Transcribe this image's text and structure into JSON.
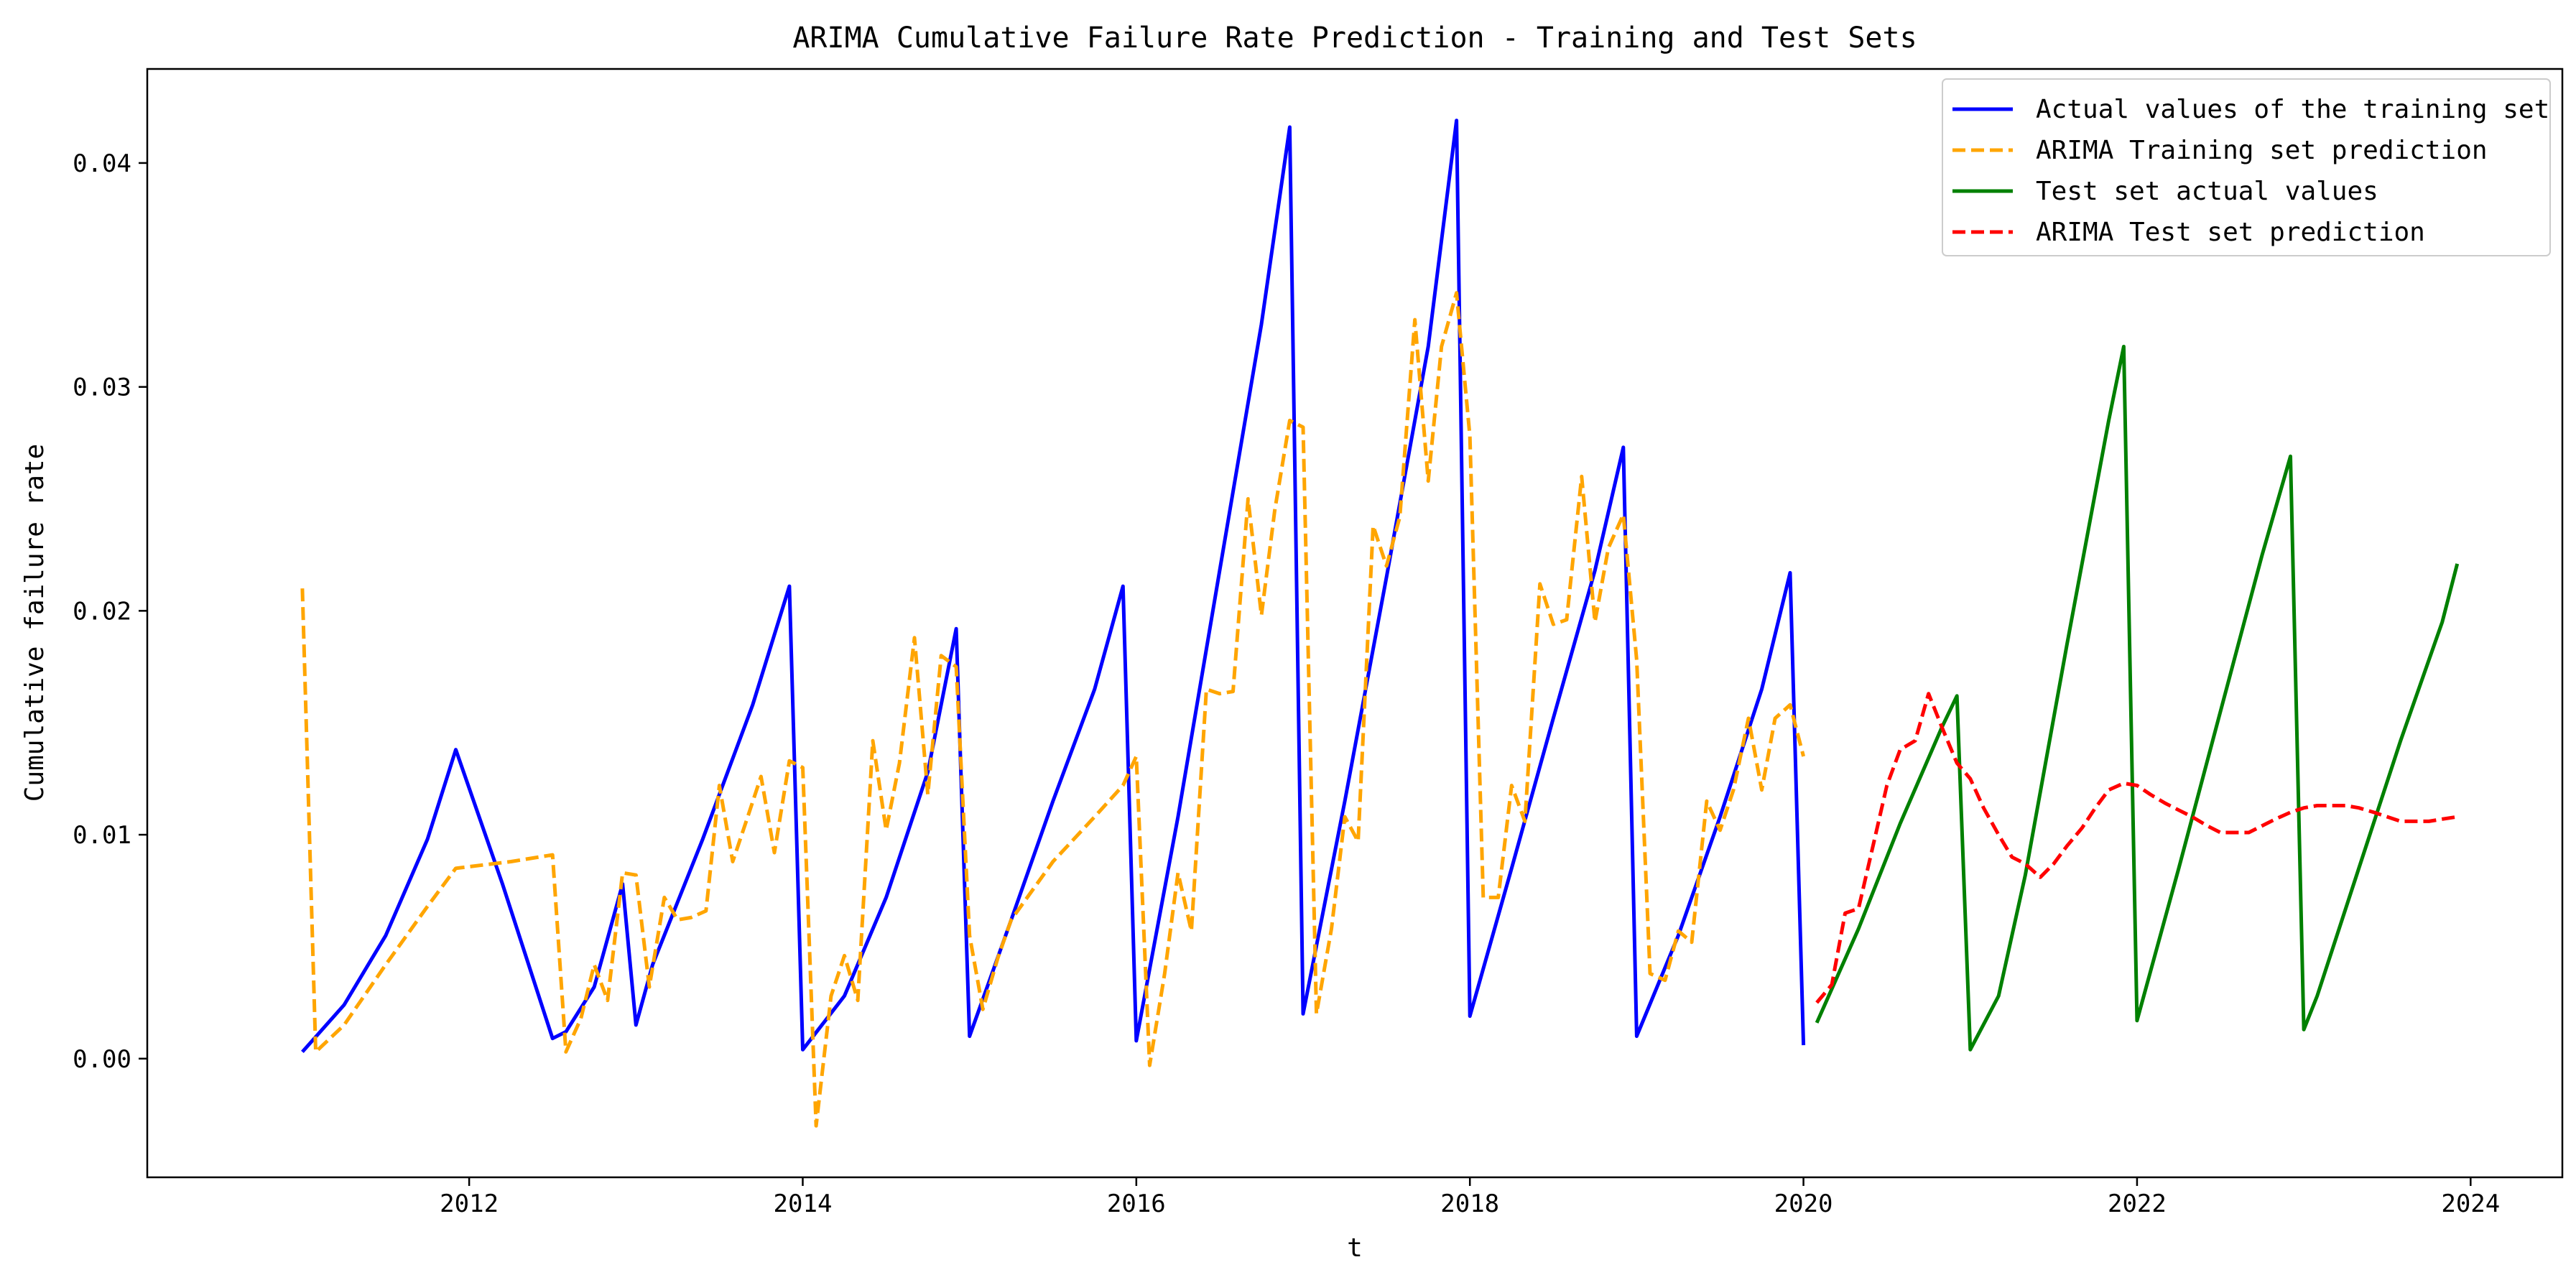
{
  "chart_data": {
    "type": "line",
    "title": "ARIMA Cumulative Failure Rate Prediction - Training and Test Sets",
    "xlabel": "t",
    "ylabel": "Cumulative failure rate",
    "xlim": [
      2010.07,
      2024.55
    ],
    "ylim": [
      -0.0053,
      0.0442
    ],
    "x_ticks": [
      2012,
      2014,
      2016,
      2018,
      2020,
      2022,
      2024
    ],
    "x_tick_labels": [
      "2012",
      "2014",
      "2016",
      "2018",
      "2020",
      "2022",
      "2024"
    ],
    "y_ticks": [
      0.0,
      0.01,
      0.02,
      0.03,
      0.04
    ],
    "y_tick_labels": [
      "0.00",
      "0.01",
      "0.02",
      "0.03",
      "0.04"
    ],
    "grid": false,
    "legend_position": "top-right",
    "series": [
      {
        "name": "Actual values of the training set",
        "color": "#0000ff",
        "dash": "solid",
        "x": [
          2011.0,
          2011.25,
          2011.5,
          2011.75,
          2011.92,
          2012.2,
          2012.5,
          2012.58,
          2012.75,
          2012.92,
          2013.0,
          2013.1,
          2013.4,
          2013.7,
          2013.92,
          2014.0,
          2014.25,
          2014.5,
          2014.75,
          2014.92,
          2015.0,
          2015.25,
          2015.5,
          2015.75,
          2015.92,
          2016.0,
          2016.25,
          2016.5,
          2016.75,
          2016.92,
          2017.0,
          2017.25,
          2017.5,
          2017.75,
          2017.92,
          2018.0,
          2018.25,
          2018.5,
          2018.75,
          2018.92,
          2019.0,
          2019.25,
          2019.5,
          2019.75,
          2019.92,
          2020.0
        ],
        "y": [
          0.0003,
          0.0024,
          0.0055,
          0.0098,
          0.0138,
          0.0078,
          0.0009,
          0.0012,
          0.0032,
          0.0078,
          0.0015,
          0.0042,
          0.0098,
          0.0158,
          0.0211,
          0.0004,
          0.0028,
          0.0072,
          0.0128,
          0.0192,
          0.001,
          0.0062,
          0.0115,
          0.0165,
          0.0211,
          0.0008,
          0.0108,
          0.0218,
          0.0328,
          0.0416,
          0.002,
          0.0115,
          0.0215,
          0.0318,
          0.0419,
          0.0019,
          0.0085,
          0.0152,
          0.0218,
          0.0273,
          0.001,
          0.0055,
          0.0108,
          0.0165,
          0.0217,
          0.0006
        ]
      },
      {
        "name": "ARIMA Training set prediction",
        "color": "#ffa500",
        "dash": "dashed",
        "x": [
          2011.0,
          2011.08,
          2011.25,
          2011.5,
          2011.75,
          2011.92,
          2012.25,
          2012.5,
          2012.58,
          2012.67,
          2012.75,
          2012.83,
          2012.92,
          2013.0,
          2013.08,
          2013.17,
          2013.25,
          2013.33,
          2013.42,
          2013.5,
          2013.58,
          2013.67,
          2013.75,
          2013.83,
          2013.92,
          2014.0,
          2014.08,
          2014.17,
          2014.25,
          2014.33,
          2014.42,
          2014.5,
          2014.58,
          2014.67,
          2014.75,
          2014.83,
          2014.92,
          2015.0,
          2015.08,
          2015.17,
          2015.25,
          2015.5,
          2015.75,
          2015.92,
          2016.0,
          2016.08,
          2016.17,
          2016.25,
          2016.33,
          2016.42,
          2016.5,
          2016.58,
          2016.67,
          2016.75,
          2016.83,
          2016.92,
          2017.0,
          2017.08,
          2017.17,
          2017.25,
          2017.33,
          2017.42,
          2017.5,
          2017.58,
          2017.67,
          2017.75,
          2017.83,
          2017.92,
          2018.0,
          2018.08,
          2018.17,
          2018.25,
          2018.33,
          2018.42,
          2018.5,
          2018.58,
          2018.67,
          2018.75,
          2018.83,
          2018.92,
          2019.0,
          2019.08,
          2019.17,
          2019.25,
          2019.33,
          2019.42,
          2019.5,
          2019.58,
          2019.67,
          2019.75,
          2019.83,
          2019.92,
          2020.0
        ],
        "y": [
          0.021,
          0.0003,
          0.0015,
          0.0042,
          0.0068,
          0.0085,
          0.0088,
          0.0091,
          0.0003,
          0.0018,
          0.0042,
          0.0026,
          0.0083,
          0.0082,
          0.0032,
          0.0072,
          0.0062,
          0.0063,
          0.0066,
          0.0122,
          0.0088,
          0.0108,
          0.0126,
          0.0092,
          0.0133,
          0.013,
          -0.003,
          0.0028,
          0.0046,
          0.0026,
          0.0142,
          0.0102,
          0.0132,
          0.0188,
          0.0118,
          0.018,
          0.0175,
          0.0055,
          0.0022,
          0.0045,
          0.0062,
          0.0088,
          0.0108,
          0.0122,
          0.0135,
          -0.0003,
          0.0038,
          0.0083,
          0.0057,
          0.0165,
          0.0163,
          0.0164,
          0.025,
          0.0198,
          0.0245,
          0.0285,
          0.0282,
          0.002,
          0.0058,
          0.0108,
          0.0097,
          0.0238,
          0.022,
          0.0242,
          0.033,
          0.0258,
          0.0318,
          0.0342,
          0.0278,
          0.0072,
          0.0072,
          0.0122,
          0.0106,
          0.0212,
          0.0194,
          0.0196,
          0.026,
          0.0195,
          0.0228,
          0.0243,
          0.0178,
          0.0038,
          0.0035,
          0.0057,
          0.0052,
          0.0115,
          0.0102,
          0.012,
          0.0152,
          0.012,
          0.0152,
          0.0158,
          0.0135
        ]
      },
      {
        "name": "Test set actual values",
        "color": "#008000",
        "dash": "solid",
        "x": [
          2020.08,
          2020.33,
          2020.58,
          2020.83,
          2020.92,
          2021.0,
          2021.17,
          2021.33,
          2021.58,
          2021.83,
          2021.92,
          2022.0,
          2022.25,
          2022.5,
          2022.75,
          2022.92,
          2023.0,
          2023.08,
          2023.33,
          2023.58,
          2023.83,
          2023.92
        ],
        "y": [
          0.0016,
          0.0058,
          0.0105,
          0.0148,
          0.0162,
          0.0004,
          0.0028,
          0.0082,
          0.0185,
          0.0285,
          0.0318,
          0.0017,
          0.0085,
          0.0155,
          0.0225,
          0.0269,
          0.0013,
          0.0028,
          0.0085,
          0.0142,
          0.0195,
          0.0221
        ]
      },
      {
        "name": "ARIMA Test set prediction",
        "color": "#ff0000",
        "dash": "dashed",
        "x": [
          2020.08,
          2020.17,
          2020.25,
          2020.33,
          2020.42,
          2020.5,
          2020.58,
          2020.67,
          2020.75,
          2020.83,
          2020.92,
          2021.0,
          2021.08,
          2021.17,
          2021.25,
          2021.33,
          2021.42,
          2021.5,
          2021.58,
          2021.67,
          2021.75,
          2021.83,
          2021.92,
          2022.0,
          2022.08,
          2022.17,
          2022.25,
          2022.33,
          2022.42,
          2022.5,
          2022.58,
          2022.67,
          2022.75,
          2022.83,
          2022.92,
          2023.0,
          2023.08,
          2023.17,
          2023.25,
          2023.33,
          2023.42,
          2023.5,
          2023.58,
          2023.67,
          2023.75,
          2023.83,
          2023.92
        ],
        "y": [
          0.0025,
          0.0033,
          0.0065,
          0.0067,
          0.0096,
          0.0122,
          0.0138,
          0.0142,
          0.0163,
          0.0148,
          0.0132,
          0.0125,
          0.0112,
          0.01,
          0.009,
          0.0087,
          0.0081,
          0.0087,
          0.0095,
          0.0103,
          0.0112,
          0.012,
          0.0123,
          0.0122,
          0.0118,
          0.0114,
          0.0111,
          0.0108,
          0.0104,
          0.0101,
          0.0101,
          0.0101,
          0.0104,
          0.0107,
          0.011,
          0.0112,
          0.0113,
          0.0113,
          0.0113,
          0.0112,
          0.011,
          0.0108,
          0.0106,
          0.0106,
          0.0106,
          0.0107,
          0.0108
        ]
      }
    ]
  }
}
